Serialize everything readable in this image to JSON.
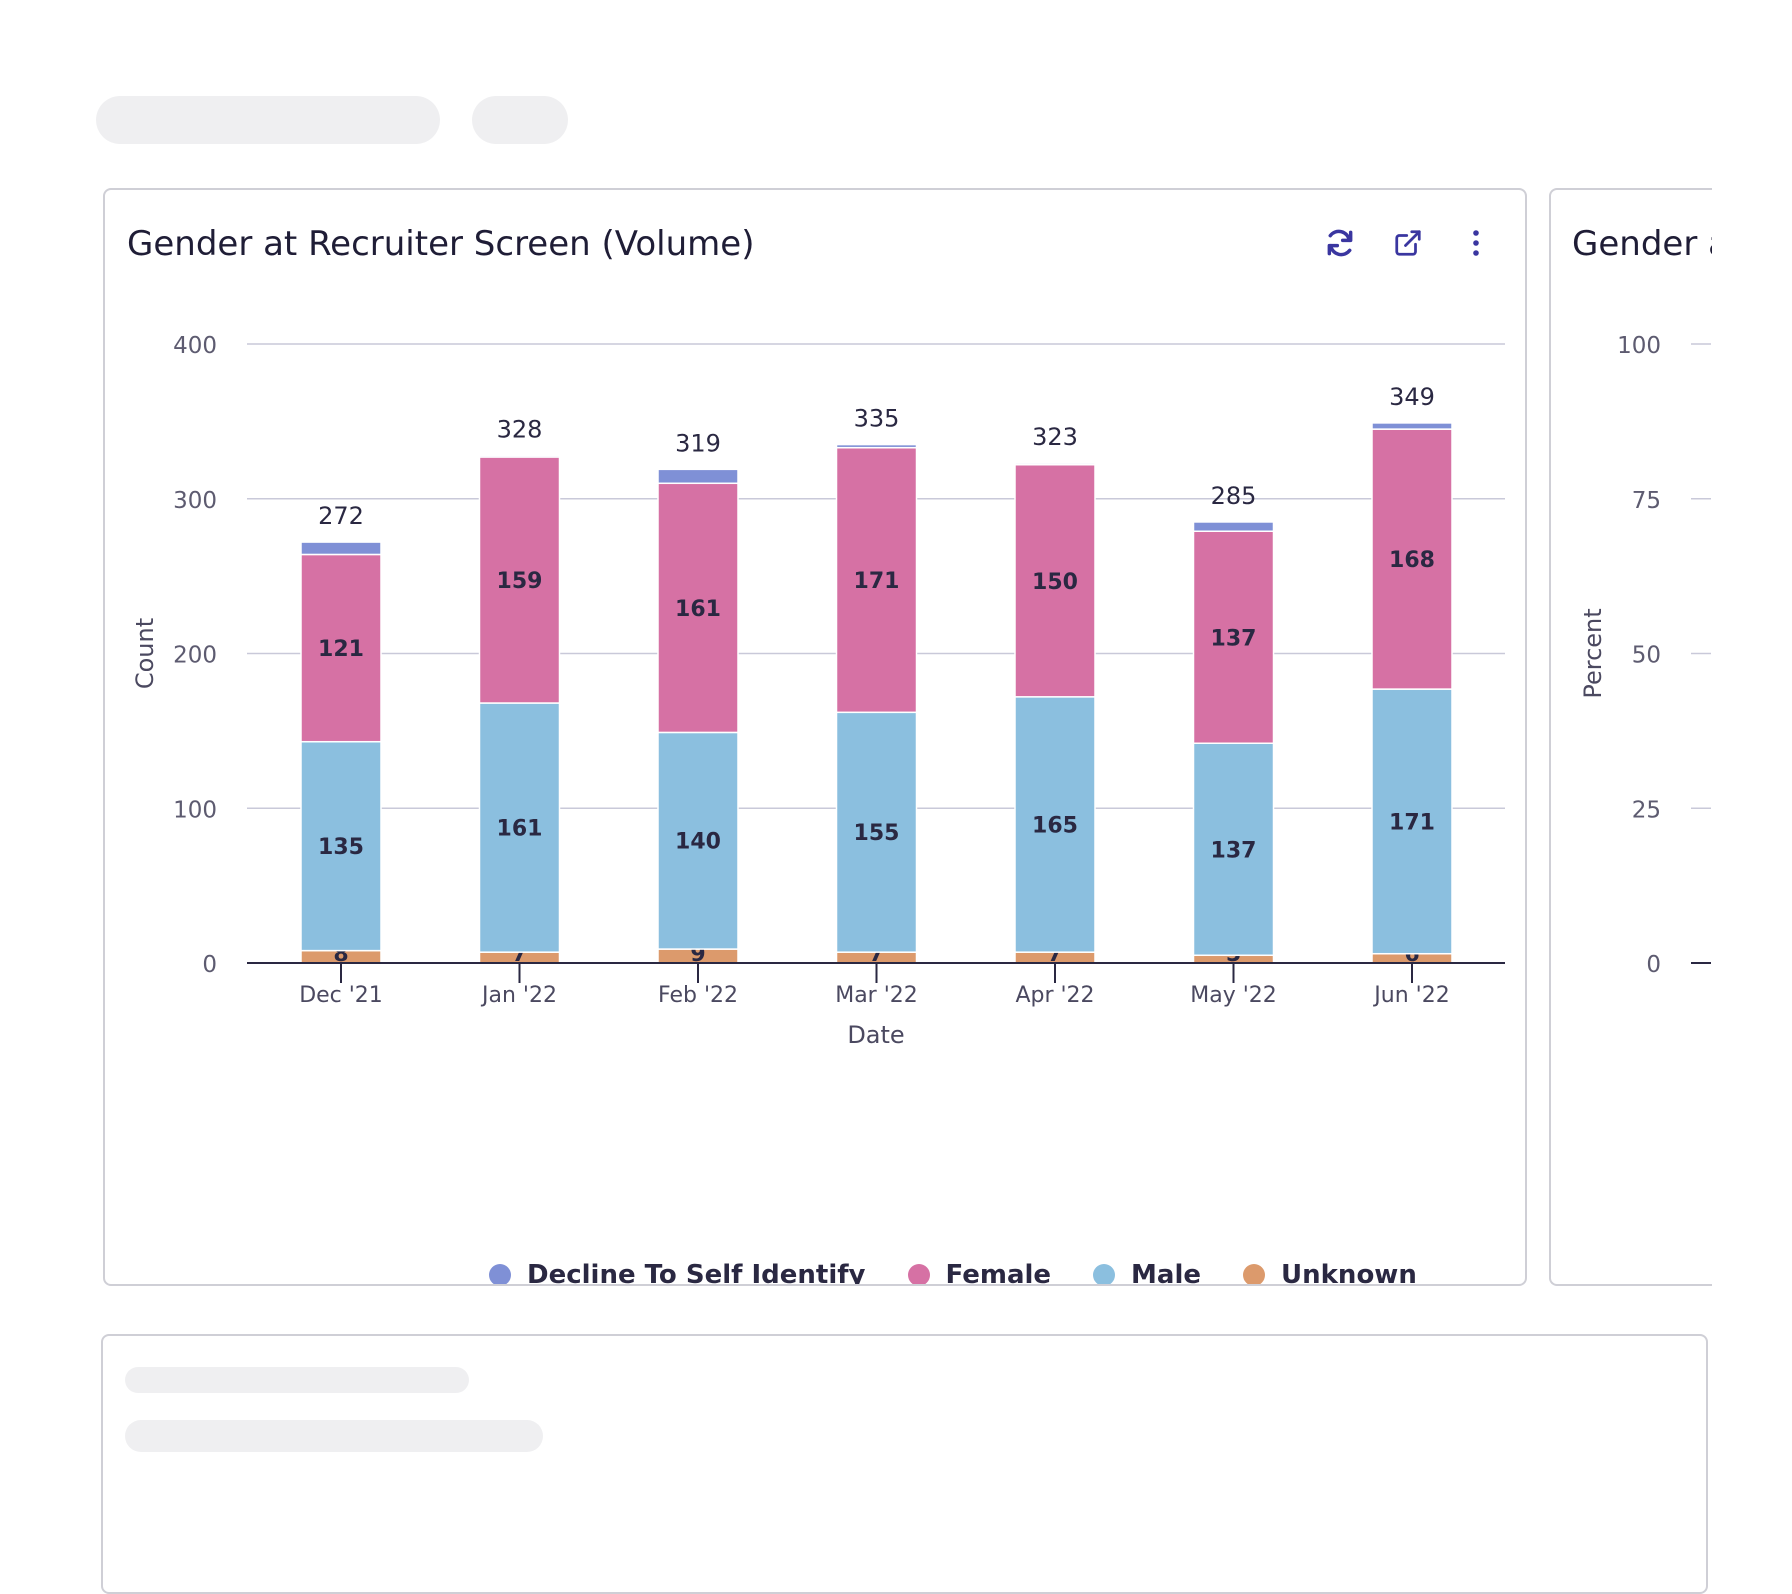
{
  "main_card": {
    "title": "Gender at Recruiter Screen (Volume)",
    "actions": [
      {
        "name": "refresh-icon",
        "color": "#3a36a0"
      },
      {
        "name": "external-link-icon",
        "color": "#3a36a0"
      },
      {
        "name": "kebab-menu-icon",
        "color": "#3a36a0"
      }
    ]
  },
  "side_card": {
    "title": "Gender a",
    "y_label": "Percent",
    "y_ticks": [
      "100",
      "75",
      "50",
      "25",
      "0"
    ]
  },
  "chart_data": {
    "type": "bar",
    "stacked": true,
    "xlabel": "Date",
    "ylabel": "Count",
    "ylim": [
      0,
      400
    ],
    "y_ticks": [
      0,
      100,
      200,
      300,
      400
    ],
    "grid": true,
    "legend_position": "bottom",
    "categories": [
      "Dec '21",
      "Jan '22",
      "Feb '22",
      "Mar '22",
      "Apr '22",
      "May '22",
      "Jun '22"
    ],
    "totals": [
      272,
      328,
      319,
      335,
      323,
      285,
      349
    ],
    "series": [
      {
        "name": "Unknown",
        "color": "#dc9a6c",
        "values": [
          8,
          7,
          9,
          7,
          7,
          5,
          6
        ]
      },
      {
        "name": "Male",
        "color": "#8bbfdf",
        "values": [
          135,
          161,
          140,
          155,
          165,
          137,
          171
        ]
      },
      {
        "name": "Female",
        "color": "#d671a4",
        "values": [
          121,
          159,
          161,
          171,
          150,
          137,
          168
        ]
      },
      {
        "name": "Decline To Self Identify",
        "color": "#7f90d6",
        "values": [
          8,
          1,
          9,
          2,
          1,
          6,
          4
        ]
      }
    ],
    "legend_order": [
      "Decline To Self Identify",
      "Female",
      "Male",
      "Unknown"
    ]
  }
}
